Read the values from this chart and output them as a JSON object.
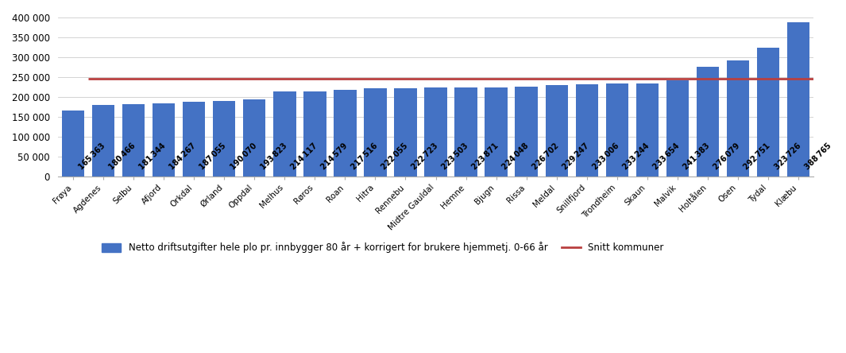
{
  "categories": [
    "Frøya",
    "Agdenes",
    "Selbu",
    "Afjord",
    "Orkdal",
    "Ørland",
    "Oppdal",
    "Melhus",
    "Røros",
    "Roan",
    "Hitra",
    "Rennebu",
    "Midtre Gauldal",
    "Hemne",
    "Bjugn",
    "Rissa",
    "Meldal",
    "Snillfjord",
    "Trondheim",
    "Skaun",
    "Malvik",
    "Holtålen",
    "Osen",
    "Tydal",
    "Klæbu"
  ],
  "values": [
    165363,
    180466,
    181344,
    184267,
    187055,
    190070,
    193823,
    214117,
    214579,
    217516,
    222055,
    222723,
    223503,
    223871,
    224048,
    226702,
    229247,
    233006,
    233244,
    233654,
    241383,
    276079,
    292751,
    323726,
    388765
  ],
  "bar_color": "#4472C4",
  "snitt_value": 246000,
  "snitt_color": "#B94040",
  "snitt_label": "Snitt kommuner",
  "bar_label": "Netto driftsutgifter hele plo pr. innbygger 80 år + korrigert for brukere hjemmetj. 0-66 år",
  "ylabel_ticks": [
    0,
    50000,
    100000,
    150000,
    200000,
    250000,
    300000,
    350000,
    400000
  ],
  "ylim": [
    0,
    415000
  ],
  "background_color": "#FFFFFF",
  "grid_color": "#CCCCCC",
  "label_separator": " "
}
